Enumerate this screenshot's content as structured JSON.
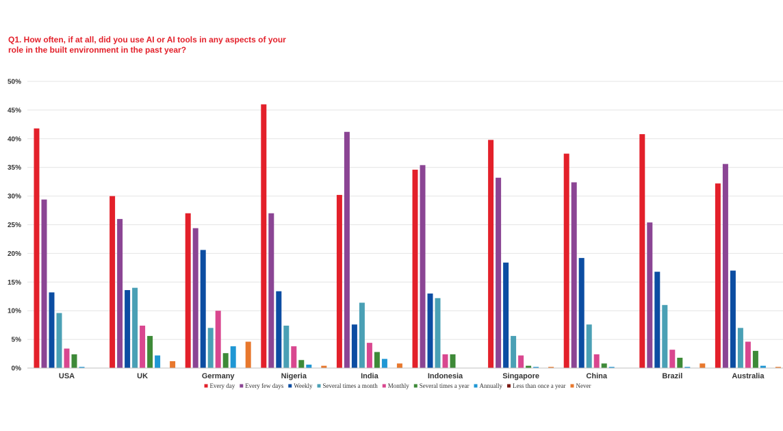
{
  "chart_data": {
    "type": "bar",
    "title": "Q1. How often, if at all, did you use AI or AI tools in any aspects of your role in the built environment in the past year?",
    "xlabel": "",
    "ylabel": "",
    "ylim": [
      0,
      50
    ],
    "yticks": [
      "0%",
      "5%",
      "10%",
      "15%",
      "20%",
      "25%",
      "30%",
      "35%",
      "40%",
      "45%",
      "50%"
    ],
    "grid": true,
    "legend_position": "bottom",
    "categories": [
      "USA",
      "UK",
      "Germany",
      "Nigeria",
      "India",
      "Indonesia",
      "Singapore",
      "China",
      "Brazil",
      "Australia"
    ],
    "series": [
      {
        "name": "Every day",
        "color": "#e3202a",
        "values": [
          41.8,
          30.0,
          27.0,
          46.0,
          30.2,
          34.6,
          39.8,
          37.4,
          40.8,
          32.2
        ]
      },
      {
        "name": "Every few days",
        "color": "#8b4594",
        "values": [
          29.4,
          26.0,
          24.4,
          27.0,
          41.2,
          35.4,
          33.2,
          32.4,
          25.4,
          35.6
        ]
      },
      {
        "name": "Weekly",
        "color": "#0c4da2",
        "values": [
          13.2,
          13.6,
          20.6,
          13.4,
          7.6,
          13.0,
          18.4,
          19.2,
          16.8,
          17.0
        ]
      },
      {
        "name": "Several times a month",
        "color": "#4aa0b5",
        "values": [
          9.6,
          14.0,
          7.0,
          7.4,
          11.4,
          12.2,
          5.6,
          7.6,
          11.0,
          7.0
        ]
      },
      {
        "name": "Monthly",
        "color": "#d9478f",
        "values": [
          3.4,
          7.4,
          10.0,
          3.8,
          4.4,
          2.4,
          2.2,
          2.4,
          3.2,
          4.6
        ]
      },
      {
        "name": "Several times a year",
        "color": "#3e8a38",
        "values": [
          2.4,
          5.6,
          2.6,
          1.4,
          2.8,
          2.4,
          0.4,
          0.8,
          1.8,
          3.0
        ]
      },
      {
        "name": "Annually",
        "color": "#1f97d4",
        "values": [
          0.2,
          2.2,
          3.8,
          0.6,
          1.6,
          0,
          0.2,
          0.2,
          0.2,
          0.4
        ]
      },
      {
        "name": "Less than once a year",
        "color": "#7a1a14",
        "values": [
          0,
          0,
          0,
          0,
          0,
          0,
          0,
          0,
          0,
          0
        ]
      },
      {
        "name": "Never",
        "color": "#e8782d",
        "values": [
          0,
          1.2,
          4.6,
          0.4,
          0.8,
          0,
          0.2,
          0,
          0.8,
          0.2
        ]
      }
    ]
  }
}
